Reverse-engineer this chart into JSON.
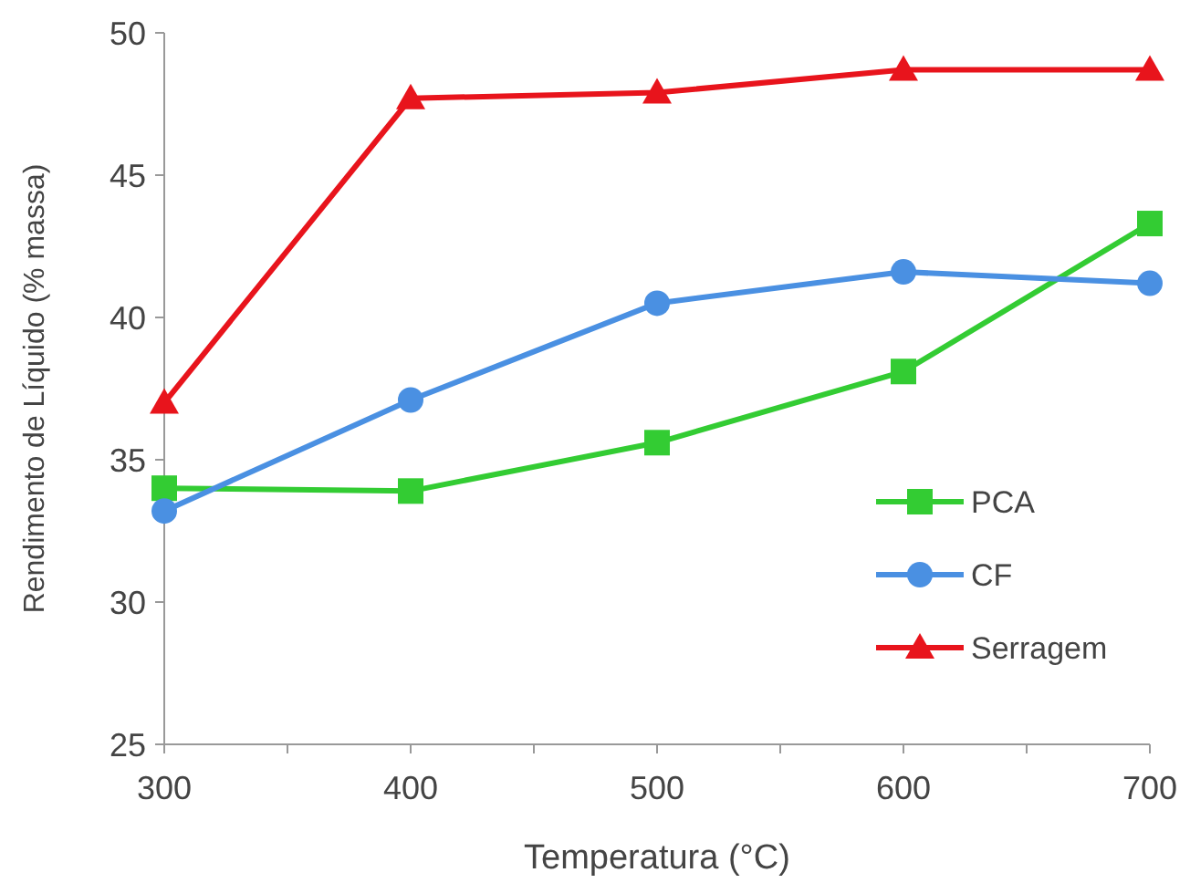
{
  "chart_data": {
    "type": "line",
    "xlabel": "Temperatura (°C)",
    "ylabel": "Rendimento de Líquido (% massa)",
    "x": [
      300,
      400,
      500,
      600,
      700
    ],
    "series": [
      {
        "name": "PCA",
        "color": "#33cc33",
        "marker": "square",
        "values": [
          34.0,
          33.9,
          35.6,
          38.1,
          43.3
        ]
      },
      {
        "name": "CF",
        "color": "#4a90e2",
        "marker": "circle",
        "values": [
          33.2,
          37.1,
          40.5,
          41.6,
          41.2
        ]
      },
      {
        "name": "Serragem",
        "color": "#e8141c",
        "marker": "triangle",
        "values": [
          37.0,
          47.7,
          47.9,
          48.7,
          48.7
        ]
      }
    ],
    "xlim": [
      300,
      700
    ],
    "xticks": [
      300,
      {
        "value": 350,
        "label": null
      },
      400,
      {
        "value": 450,
        "label": null
      },
      500,
      {
        "value": 550,
        "label": null
      },
      600,
      {
        "value": 650,
        "label": null
      },
      700
    ],
    "ylim": [
      25,
      50
    ],
    "yticks": [
      25,
      30,
      35,
      40,
      45,
      50
    ],
    "grid": false,
    "legend": "right",
    "line_style": "solid"
  }
}
